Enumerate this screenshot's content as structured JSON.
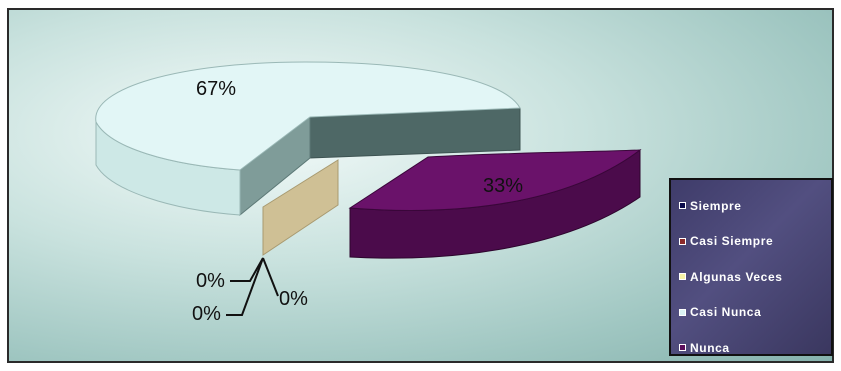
{
  "chart_data": {
    "type": "pie",
    "title": "",
    "categories": [
      "Siempre",
      "Casi Siempre",
      "Algunas Veces",
      "Casi Nunca",
      "Nunca"
    ],
    "values": [
      0,
      0,
      0,
      67,
      33
    ],
    "data_labels": [
      "0%",
      "0%",
      "0%",
      "67%",
      "33%"
    ],
    "colors": [
      "#0b0b4a",
      "#8c2a2a",
      "#f6f2a6",
      "#daf3f3",
      "#5c0f5c"
    ],
    "legend_position": "right",
    "style": "3d-exploded"
  },
  "legend": {
    "items": [
      {
        "label": "Siempre",
        "color": "#0b0b4a"
      },
      {
        "label": "Casi Siempre",
        "color": "#8c2a2a"
      },
      {
        "label": "Algunas Veces",
        "color": "#f6f2a6"
      },
      {
        "label": "Casi Nunca",
        "color": "#daf3f3"
      },
      {
        "label": "Nunca",
        "color": "#5c0f5c"
      }
    ]
  }
}
